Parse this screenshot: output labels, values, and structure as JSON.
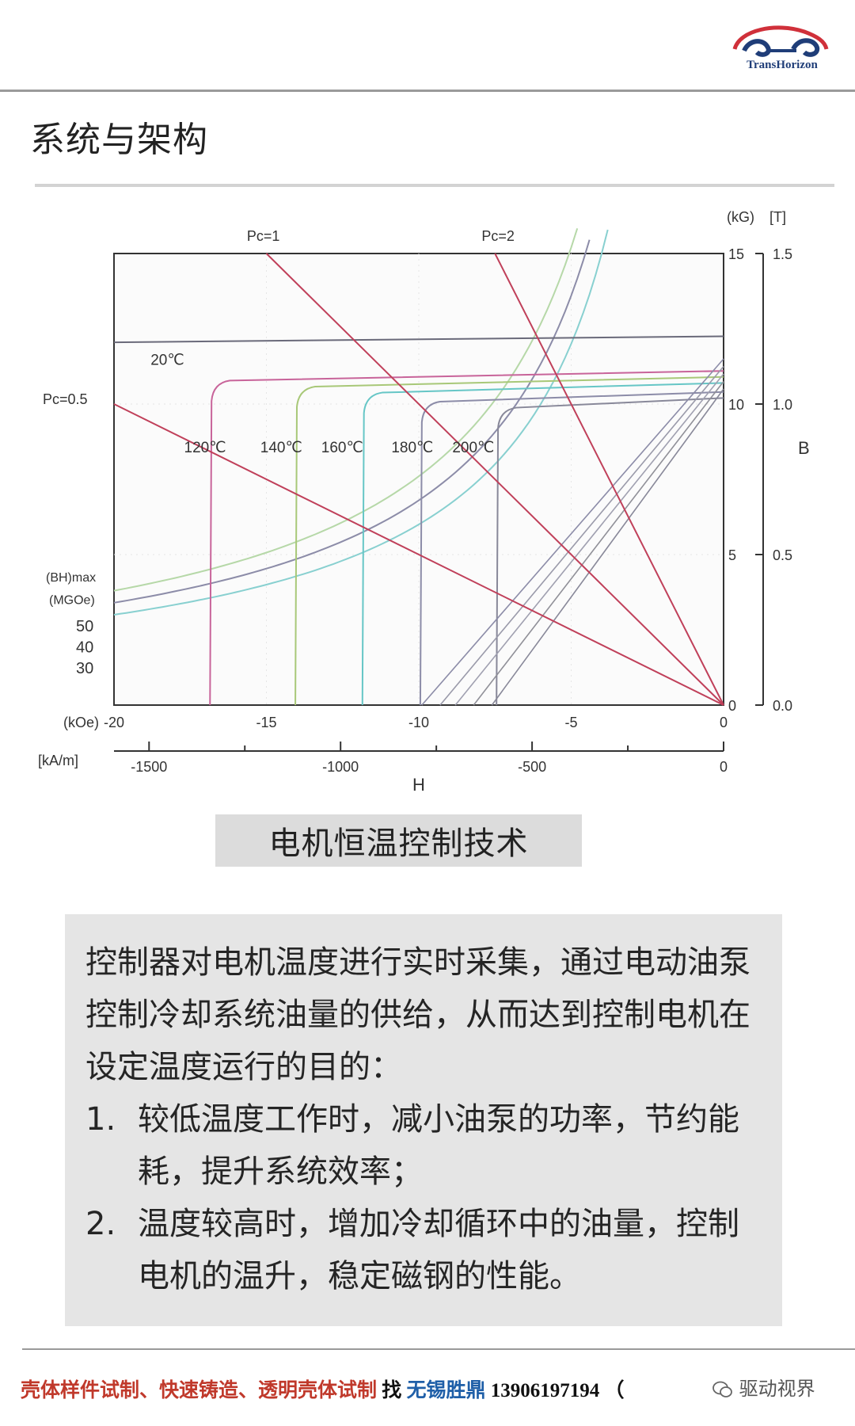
{
  "header": {
    "logo_text": "TransHorizon",
    "title": "系统与架构"
  },
  "chart_data": {
    "type": "line",
    "title": "",
    "xlabel": "H",
    "ylabel": "B",
    "x_axis_kOe": {
      "unit": "(kOe)",
      "ticks": [
        "-20",
        "-15",
        "-10",
        "-5",
        "0"
      ],
      "xlim": [
        -20,
        0
      ]
    },
    "x_axis_kAm": {
      "unit": "[kA/m]",
      "ticks": [
        "-1500",
        "-1000",
        "-500",
        "0"
      ]
    },
    "y_axis_kG": {
      "unit": "(kG)",
      "ticks": [
        "0",
        "5",
        "10",
        "15"
      ],
      "ylim": [
        0,
        15
      ]
    },
    "y_axis_T": {
      "unit": "[T]",
      "ticks": [
        "0.0",
        "0.5",
        "1.0",
        "1.5"
      ]
    },
    "bhmax_label": [
      "(BH)max",
      "(MGOe)"
    ],
    "bhmax_values": [
      "50",
      "40",
      "30"
    ],
    "load_lines": [
      {
        "label": "Pc=1",
        "slope": 1
      },
      {
        "label": "Pc=2",
        "slope": 2
      },
      {
        "label": "Pc=0.5",
        "slope": 0.5
      }
    ],
    "demag_curves": [
      {
        "label": "20℃",
        "Br_kG": 12.2,
        "Hci_kOe": null,
        "color": "#6a6a7a"
      },
      {
        "label": "120℃",
        "Br_kG": 11.1,
        "Hci_kOe": -16.8,
        "color": "#c8649a"
      },
      {
        "label": "140℃",
        "Br_kG": 10.9,
        "Hci_kOe": -14.0,
        "color": "#a8c878"
      },
      {
        "label": "160℃",
        "Br_kG": 10.7,
        "Hci_kOe": -11.8,
        "color": "#66c6c6"
      },
      {
        "label": "180℃",
        "Br_kG": 10.4,
        "Hci_kOe": -9.9,
        "color": "#8c8ca8"
      },
      {
        "label": "200℃",
        "Br_kG": 10.2,
        "Hci_kOe": -7.4,
        "color": "#888899"
      }
    ]
  },
  "caption": "电机恒温控制技术",
  "description": {
    "intro": "控制器对电机温度进行实时采集，通过电动油泵控制冷却系统油量的供给，从而达到控制电机在设定温度运行的目的：",
    "items": [
      {
        "num": "1.",
        "text": "较低温度工作时，减小油泵的功率，节约能耗，提升系统效率；"
      },
      {
        "num": "2.",
        "text": "温度较高时，增加冷却循环中的油量，控制电机的温升，稳定磁钢的性能。"
      }
    ]
  },
  "footer": {
    "ad_text": "壳体样件试制、快速铸造、透明壳体试制",
    "find": "找",
    "company": "无锡胜鼎",
    "phone": "13906197194",
    "paren": "（",
    "wechat": "驱动视界"
  },
  "colors": {
    "load_line": "#c0405a",
    "axis": "#333333",
    "footer_red": "#c0392b",
    "footer_blue": "#1f5fa8"
  }
}
